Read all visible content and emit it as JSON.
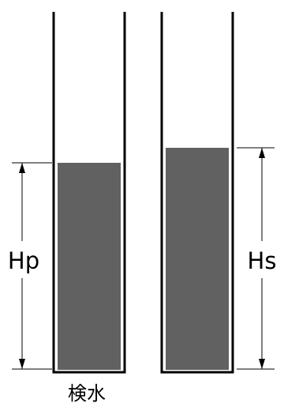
{
  "labels": {
    "left_height": "Hp",
    "right_height": "Hs",
    "left_tube_caption": "検水"
  },
  "tubes": [
    {
      "id": "sample",
      "liquid_level_fraction": 0.66
    },
    {
      "id": "standard",
      "liquid_level_fraction": 0.71
    }
  ],
  "colors": {
    "liquid": "#616161",
    "outline": "#000000",
    "background": "#ffffff"
  }
}
